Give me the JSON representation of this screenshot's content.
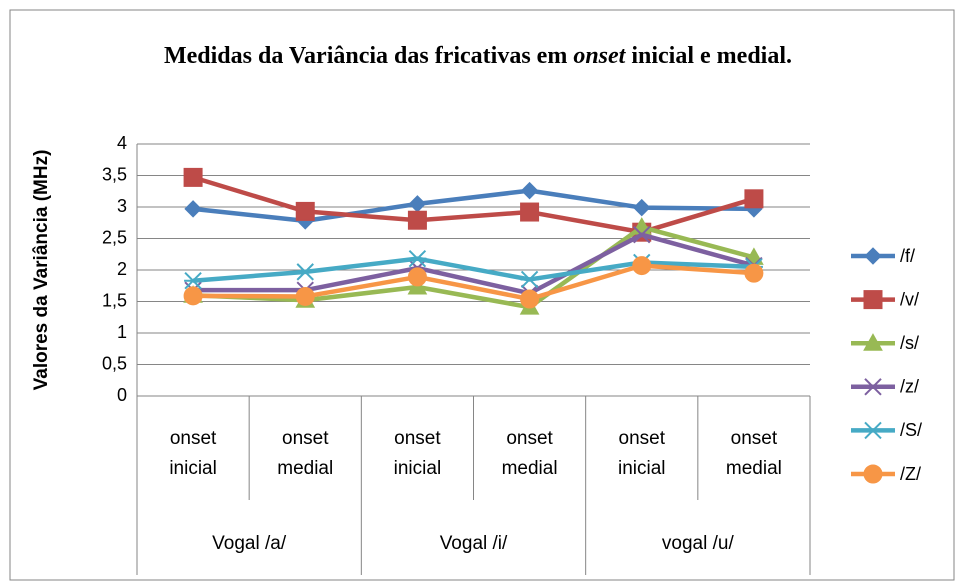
{
  "chart_data": {
    "type": "line",
    "title_parts": [
      "Medidas da Variância das fricativas em ",
      "onset",
      " inicial e medial."
    ],
    "y_label": "Valores da Variância (MHz)",
    "categories": [
      "onset inicial",
      "onset medial",
      "onset inicial",
      "onset medial",
      "onset inicial",
      "onset medial"
    ],
    "groups": [
      "Vogal /a/",
      "Vogal /i/",
      "vogal /u/"
    ],
    "ylim": [
      0,
      4
    ],
    "yticks": [
      0,
      {
        "value": 0.5,
        "label": "0,5"
      },
      1,
      {
        "value": 1.5,
        "label": "1,5"
      },
      2,
      {
        "value": 2.5,
        "label": "2,5"
      },
      3,
      {
        "value": 3.5,
        "label": "3,5"
      },
      4
    ],
    "grid": true,
    "legend": "right",
    "series": [
      {
        "name": "/f/",
        "color": "#4a7ebb",
        "marker": "diamond",
        "values": [
          2.97,
          2.78,
          3.05,
          3.26,
          2.99,
          2.97
        ]
      },
      {
        "name": "/v/",
        "color": "#be4b48",
        "marker": "square",
        "values": [
          3.47,
          2.93,
          2.79,
          2.92,
          2.6,
          3.13
        ]
      },
      {
        "name": "/s/",
        "color": "#98b954",
        "marker": "triangle",
        "values": [
          1.6,
          1.52,
          1.73,
          1.41,
          2.68,
          2.2
        ]
      },
      {
        "name": "/z/",
        "color": "#7d60a0",
        "marker": "x",
        "values": [
          1.68,
          1.68,
          2.03,
          1.63,
          2.56,
          2.07
        ]
      },
      {
        "name": "/S/",
        "color": "#46aac5",
        "marker": "star",
        "values": [
          1.83,
          1.97,
          2.18,
          1.85,
          2.12,
          2.05
        ]
      },
      {
        "name": "/Z/",
        "color": "#f79646",
        "marker": "circle",
        "values": [
          1.59,
          1.58,
          1.89,
          1.54,
          2.07,
          1.95
        ]
      }
    ]
  }
}
